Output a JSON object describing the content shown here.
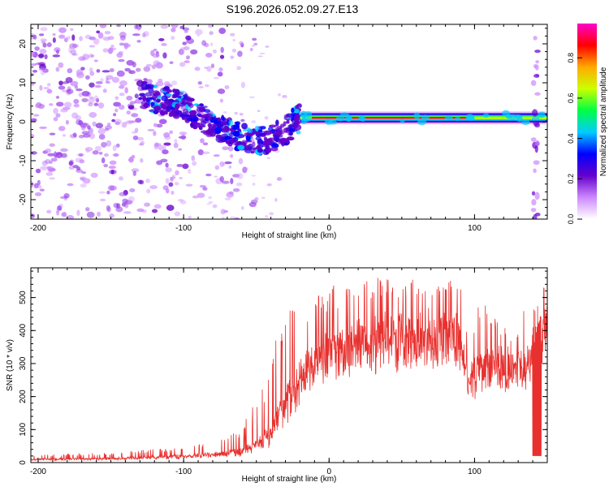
{
  "title": "S196.2026.052.09.27.E13",
  "colors": {
    "snr_line": "#e8302e",
    "axis": "#000000",
    "background": "#ffffff"
  },
  "chart_data": [
    {
      "type": "heatmap",
      "name": "spectrogram",
      "xlabel": "Height of straight line (km)",
      "ylabel": "Frequency (Hz)",
      "xlim": [
        -205,
        150
      ],
      "ylim": [
        -25,
        25
      ],
      "xticks": [
        -200,
        -100,
        0,
        100
      ],
      "xtick_labels": [
        "-200",
        "-100",
        "0",
        "100"
      ],
      "yticks": [
        -20,
        -10,
        0,
        10,
        20
      ],
      "ytick_labels": [
        "-20",
        "-10",
        "0",
        "10",
        "20"
      ],
      "features": {
        "noise_region_x": [
          -205,
          -90
        ],
        "chirp": {
          "x": [
            -130,
            -100,
            -80,
            -60,
            -45,
            -30,
            -20
          ],
          "freq_hz": [
            7,
            4,
            -1,
            -4,
            -5,
            -2,
            1
          ]
        },
        "steady_line": {
          "x": [
            -20,
            150
          ],
          "freq_hz": 1,
          "peak_amplitude": 0.95
        },
        "right_edge_x": 142
      }
    },
    {
      "type": "colorbar",
      "name": "amplitude-colorbar",
      "label": "Normalized spectral amplitude",
      "range": [
        0.0,
        0.97
      ],
      "ticks": [
        0.0,
        0.2,
        0.4,
        0.6,
        0.8
      ],
      "tick_labels": [
        "0.0",
        "0.2",
        "0.4",
        "0.6",
        "0.8"
      ],
      "colormap": [
        "#ffffff",
        "#cc88ff",
        "#6600cc",
        "#0000ff",
        "#00ccff",
        "#00ff44",
        "#ccff00",
        "#ffaa00",
        "#ff0000",
        "#ff00cc"
      ]
    },
    {
      "type": "line",
      "name": "snr",
      "xlabel": "Height of straight line (km)",
      "ylabel": "SNR (10 * v/v)",
      "xlim": [
        -205,
        150
      ],
      "ylim": [
        0,
        590
      ],
      "xticks": [
        -200,
        -100,
        0,
        100
      ],
      "xtick_labels": [
        "-200",
        "-100",
        "0",
        "100"
      ],
      "yticks": [
        0,
        100,
        200,
        300,
        400,
        500
      ],
      "ytick_labels": [
        "0",
        "100",
        "200",
        "300",
        "400",
        "500"
      ],
      "envelope": {
        "x": [
          -205,
          -150,
          -110,
          -80,
          -60,
          -45,
          -35,
          -25,
          -15,
          -5,
          5,
          20,
          40,
          60,
          80,
          90,
          96,
          100,
          110,
          120,
          130,
          140,
          150
        ],
        "base": [
          10,
          12,
          18,
          25,
          35,
          70,
          130,
          220,
          300,
          330,
          350,
          370,
          385,
          390,
          395,
          385,
          250,
          280,
          310,
          300,
          290,
          320,
          420
        ],
        "spike": [
          25,
          30,
          45,
          60,
          110,
          230,
          420,
          500,
          470,
          520,
          540,
          560,
          560,
          570,
          580,
          540,
          420,
          470,
          500,
          420,
          400,
          560,
          560
        ]
      },
      "dropout": {
        "x": [
          140,
          146
        ],
        "min": 20
      }
    }
  ]
}
